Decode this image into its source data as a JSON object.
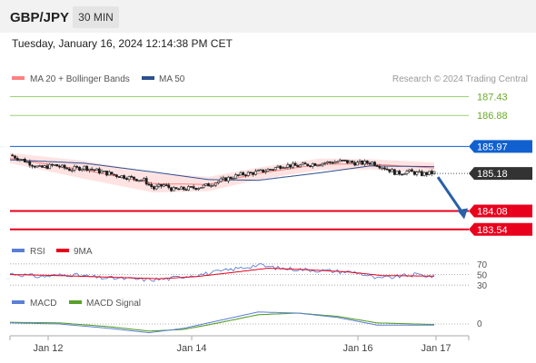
{
  "header": {
    "pair": "GBP/JPY",
    "timeframe": "30 MIN",
    "datetime": "Tuesday, January 16, 2024 12:14:38 PM CET",
    "copyright": "Research © 2024 Trading Central"
  },
  "colors": {
    "header_bg": "#f2f2f2",
    "badge_bg": "#e4e4e4",
    "green": "#6aaa2a",
    "blue": "#1060d0",
    "red": "#e8001c",
    "dark": "#333333",
    "arrow": "#2a5fa8",
    "ma20": "#ff8080",
    "ma50": "#2c4f8f",
    "rsi": "#5b7fd6",
    "ma9": "#e8001c",
    "macd": "#5b7fd6",
    "macd_signal": "#5aa02c"
  },
  "chart_data": [
    {
      "type": "candlestick",
      "legend": [
        {
          "name": "MA 20 + Bollinger Bands",
          "color": "#ff8080"
        },
        {
          "name": "MA 50",
          "color": "#2c4f8f"
        }
      ],
      "levels": [
        {
          "value": 187.43,
          "label": "187.43",
          "style": "green-line"
        },
        {
          "value": 186.88,
          "label": "186.88",
          "style": "green-line"
        },
        {
          "value": 185.97,
          "label": "185.97",
          "style": "blue-tag"
        },
        {
          "value": 185.18,
          "label": "185.18",
          "style": "current-price"
        },
        {
          "value": 184.08,
          "label": "184.08",
          "style": "red-tag"
        },
        {
          "value": 183.54,
          "label": "183.54",
          "style": "red-tag"
        }
      ],
      "x_ticks": [
        "Jan 12",
        "Jan 14",
        "Jan 16",
        "Jan 17"
      ],
      "close_path": [
        [
          0,
          185.72
        ],
        [
          6,
          185.55
        ],
        [
          12,
          185.34
        ],
        [
          18,
          185.42
        ],
        [
          24,
          185.3
        ],
        [
          30,
          185.36
        ],
        [
          36,
          185.24
        ],
        [
          42,
          185.14
        ],
        [
          48,
          185.06
        ],
        [
          54,
          184.98
        ],
        [
          58,
          184.74
        ],
        [
          62,
          184.84
        ],
        [
          66,
          184.7
        ],
        [
          72,
          184.74
        ],
        [
          78,
          184.8
        ],
        [
          82,
          184.9
        ],
        [
          88,
          185.04
        ],
        [
          94,
          185.16
        ],
        [
          100,
          185.22
        ],
        [
          106,
          185.32
        ],
        [
          110,
          185.42
        ],
        [
          116,
          185.4
        ],
        [
          122,
          185.46
        ],
        [
          128,
          185.5
        ],
        [
          134,
          185.54
        ],
        [
          140,
          185.48
        ],
        [
          146,
          185.5
        ],
        [
          150,
          185.38
        ],
        [
          156,
          185.18
        ],
        [
          160,
          185.24
        ],
        [
          166,
          185.16
        ],
        [
          171,
          185.2
        ]
      ],
      "bollinger": {
        "mid": [
          [
            0,
            185.62
          ],
          [
            30,
            185.28
          ],
          [
            58,
            184.88
          ],
          [
            80,
            184.86
          ],
          [
            100,
            185.18
          ],
          [
            125,
            185.45
          ],
          [
            145,
            185.46
          ],
          [
            171,
            185.34
          ]
        ],
        "upper": [
          [
            0,
            185.78
          ],
          [
            30,
            185.55
          ],
          [
            58,
            185.2
          ],
          [
            80,
            185.08
          ],
          [
            100,
            185.35
          ],
          [
            125,
            185.62
          ],
          [
            145,
            185.6
          ],
          [
            171,
            185.5
          ]
        ],
        "lower": [
          [
            0,
            185.48
          ],
          [
            30,
            185.02
          ],
          [
            58,
            184.62
          ],
          [
            80,
            184.66
          ],
          [
            100,
            185.0
          ],
          [
            125,
            185.28
          ],
          [
            145,
            185.3
          ],
          [
            171,
            185.16
          ]
        ]
      },
      "ma50": [
        [
          0,
          185.58
        ],
        [
          30,
          185.48
        ],
        [
          58,
          185.22
        ],
        [
          80,
          185.0
        ],
        [
          100,
          184.98
        ],
        [
          125,
          185.2
        ],
        [
          145,
          185.4
        ],
        [
          171,
          185.38
        ]
      ],
      "projection": {
        "from": 185.18,
        "to": 184.0
      }
    },
    {
      "type": "line",
      "legend": [
        {
          "name": "RSI",
          "color": "#5b7fd6"
        },
        {
          "name": "9MA",
          "color": "#e8001c"
        }
      ],
      "y_ticks": [
        70,
        50,
        30
      ],
      "ylim": [
        20,
        80
      ],
      "rsi": [
        [
          0,
          52
        ],
        [
          12,
          46
        ],
        [
          24,
          50
        ],
        [
          36,
          44
        ],
        [
          48,
          42
        ],
        [
          56,
          40
        ],
        [
          64,
          42
        ],
        [
          72,
          48
        ],
        [
          80,
          52
        ],
        [
          90,
          60
        ],
        [
          100,
          68
        ],
        [
          108,
          62
        ],
        [
          116,
          60
        ],
        [
          124,
          58
        ],
        [
          132,
          56
        ],
        [
          140,
          54
        ],
        [
          148,
          42
        ],
        [
          156,
          46
        ],
        [
          164,
          50
        ],
        [
          171,
          46
        ]
      ],
      "ma9": [
        [
          0,
          50
        ],
        [
          20,
          48
        ],
        [
          40,
          45
        ],
        [
          60,
          42
        ],
        [
          75,
          46
        ],
        [
          90,
          54
        ],
        [
          104,
          62
        ],
        [
          120,
          59
        ],
        [
          136,
          55
        ],
        [
          150,
          48
        ],
        [
          171,
          47
        ]
      ]
    },
    {
      "type": "line",
      "legend": [
        {
          "name": "MACD",
          "color": "#5b7fd6"
        },
        {
          "name": "MACD Signal",
          "color": "#5aa02c"
        }
      ],
      "y_ticks": [
        0
      ],
      "ylim": [
        -0.35,
        0.45
      ],
      "macd": [
        [
          0,
          0.02
        ],
        [
          20,
          0.0
        ],
        [
          40,
          -0.08
        ],
        [
          56,
          -0.16
        ],
        [
          70,
          -0.08
        ],
        [
          84,
          0.06
        ],
        [
          100,
          0.22
        ],
        [
          116,
          0.2
        ],
        [
          132,
          0.12
        ],
        [
          148,
          -0.02
        ],
        [
          171,
          -0.02
        ]
      ],
      "signal": [
        [
          0,
          0.03
        ],
        [
          20,
          0.02
        ],
        [
          40,
          -0.05
        ],
        [
          56,
          -0.13
        ],
        [
          70,
          -0.1
        ],
        [
          84,
          0.02
        ],
        [
          100,
          0.17
        ],
        [
          116,
          0.2
        ],
        [
          132,
          0.14
        ],
        [
          148,
          0.02
        ],
        [
          171,
          -0.01
        ]
      ]
    }
  ]
}
